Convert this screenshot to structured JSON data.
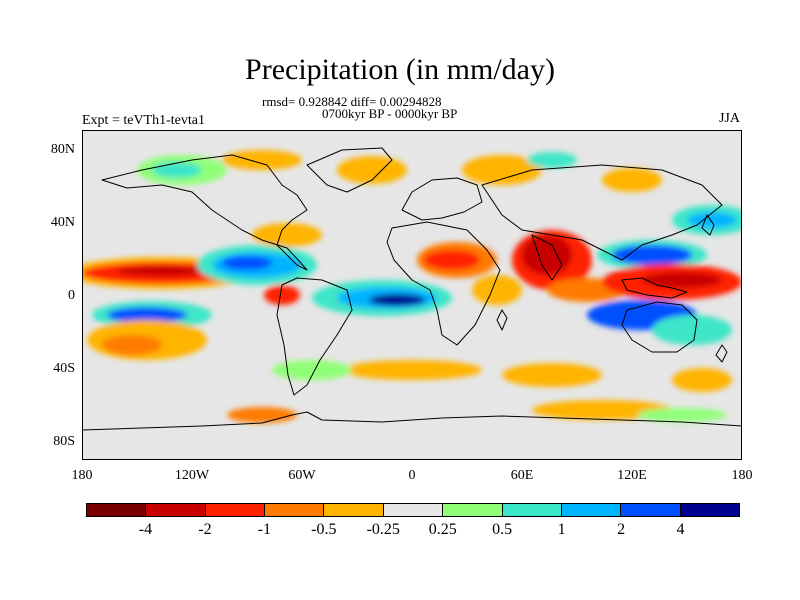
{
  "title": "Precipitation (in mm/day)",
  "stats": "rmsd= 0.928842 diff= 0.00294828",
  "period": "0700kyr BP - 0000kyr BP",
  "experiment": "Expt = teVTh1-tevta1",
  "season": "JJA",
  "lat_labels": [
    "80N",
    "40N",
    "0",
    "40S",
    "80S"
  ],
  "lon_labels": [
    "180",
    "120W",
    "60W",
    "0",
    "60E",
    "120E",
    "180"
  ],
  "colorbar": {
    "colors": [
      "#7a0000",
      "#c80000",
      "#ff2200",
      "#ff7a00",
      "#ffb400",
      "#e6e6e6",
      "#90ff78",
      "#3ce6c8",
      "#00b4ff",
      "#0050ff",
      "#000090"
    ],
    "labels": [
      "-4",
      "-2",
      "-1",
      "-0.5",
      "-0.25",
      "0.25",
      "0.5",
      "1",
      "2",
      "4"
    ]
  },
  "map": {
    "background": "#e6e6e6",
    "coastline_color": "#000000"
  }
}
